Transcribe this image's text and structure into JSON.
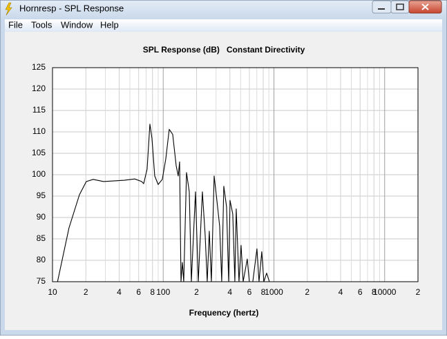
{
  "window": {
    "title": "Hornresp - SPL Response"
  },
  "menu": [
    "File",
    "Tools",
    "Window",
    "Help"
  ],
  "chart_data": {
    "type": "line",
    "title": "SPL Response (dB)   Constant Directivity",
    "x_label": "Frequency (hertz)",
    "x_scale": "log",
    "grid": true,
    "color": "#000000",
    "xlim": [
      10,
      20000
    ],
    "ylim": [
      75,
      125
    ],
    "xticks": [
      {
        "value": 10,
        "label": "10"
      },
      {
        "value": 20,
        "label": "2"
      },
      {
        "value": 40,
        "label": "4"
      },
      {
        "value": 60,
        "label": "6"
      },
      {
        "value": 80,
        "label": "8"
      },
      {
        "value": 100,
        "label": "100"
      },
      {
        "value": 200,
        "label": "2"
      },
      {
        "value": 400,
        "label": "4"
      },
      {
        "value": 600,
        "label": "6"
      },
      {
        "value": 800,
        "label": "8"
      },
      {
        "value": 1000,
        "label": "1000"
      },
      {
        "value": 2000,
        "label": "2"
      },
      {
        "value": 4000,
        "label": "4"
      },
      {
        "value": 6000,
        "label": "6"
      },
      {
        "value": 8000,
        "label": "8"
      },
      {
        "value": 10000,
        "label": "10000"
      },
      {
        "value": 20000,
        "label": "2"
      }
    ],
    "x_minor_ticks": [
      30,
      50,
      70,
      90,
      300,
      500,
      700,
      900,
      3000,
      5000,
      7000,
      9000
    ],
    "yticks": [
      75,
      80,
      85,
      90,
      95,
      100,
      105,
      110,
      115,
      120,
      125
    ],
    "x": [
      11.1,
      14.1,
      17.5,
      20.2,
      23.3,
      28.9,
      44.6,
      55.3,
      63.8,
      66.6,
      71.5,
      75.8,
      79.1,
      83.8,
      90,
      98.1,
      105.5,
      113.3,
      121.8,
      130.9,
      136.6,
      140.6,
      144.7,
      148.9,
      153.2,
      162.3,
      171.9,
      179.5,
      195.6,
      207.2,
      225.8,
      239.1,
      249.7,
      260.7,
      272.2,
      288.3,
      305.3,
      323.3,
      337.6,
      352.5,
      373.3,
      389.8,
      401.2,
      424.8,
      443.6,
      456.5,
      483.4,
      504.7,
      527,
      574.2,
      599.6,
      644.4,
      702.3,
      733.3,
      776.5,
      810.8,
      859,
      909.6
    ],
    "values": [
      75,
      87.6,
      95.3,
      98.4,
      98.9,
      98.4,
      98.7,
      99,
      98.4,
      97.9,
      101.3,
      111.8,
      108.5,
      99.7,
      97.7,
      98.9,
      103.7,
      110.6,
      109.4,
      102.1,
      99.7,
      103,
      75,
      79.5,
      75,
      100.5,
      96,
      75,
      96,
      75,
      96,
      86,
      75,
      86.8,
      75,
      99.7,
      94,
      88,
      75,
      97.3,
      92.5,
      75,
      94,
      90.8,
      75,
      92,
      75,
      83.5,
      75,
      80.3,
      75,
      75,
      82.7,
      75,
      82,
      75,
      77,
      75
    ]
  }
}
